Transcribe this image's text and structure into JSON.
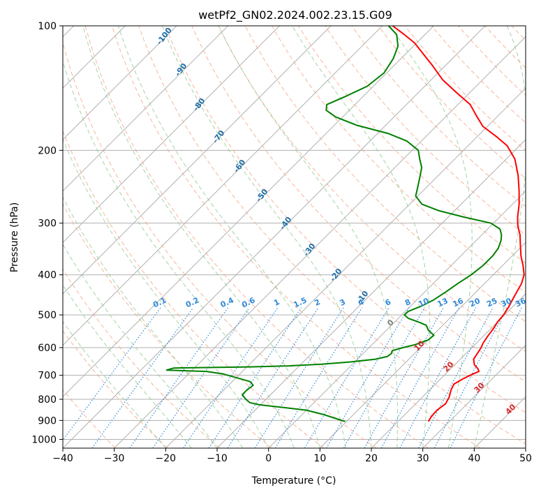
{
  "chart_data": {
    "type": "line",
    "title": "wetPf2_GN02.2024.002.23.15.G09",
    "xlabel": "Temperature (°C)",
    "ylabel": "Pressure (hPa)",
    "xlim": [
      -40,
      50
    ],
    "ylim": [
      1050,
      100
    ],
    "y_scale": "log",
    "skew": true,
    "grid": true,
    "x_ticks": [
      -40,
      -30,
      -20,
      -10,
      0,
      10,
      20,
      30,
      40,
      50
    ],
    "y_ticks": [
      100,
      200,
      300,
      400,
      500,
      600,
      700,
      800,
      900,
      1000
    ],
    "background_lines": {
      "isotherms_color": "#b0b0b0",
      "dry_adiabats_color": "#f5a27f",
      "moist_adiabats_color": "#8cc98c",
      "mixing_ratio_color": "#2f8ad8",
      "moist_adiabat_label_color": "#1f6fa8",
      "isotherm_label_color": "#d62728",
      "zero_isotherm_label_color": "#808080",
      "moist_adiabat_labels": [
        "-100",
        "-90",
        "-80",
        "-70",
        "-60",
        "-50",
        "-40",
        "-30",
        "-20",
        "-10"
      ],
      "mixing_ratio_labels": [
        "0.1",
        "0.2",
        "0.4",
        "0.6",
        "1",
        "1.5",
        "2",
        "3",
        "4",
        "6",
        "8",
        "10",
        "13",
        "16",
        "20",
        "25",
        "30",
        "36"
      ],
      "isotherm_labels": [
        "0",
        "10",
        "20",
        "30",
        "40"
      ]
    },
    "series": [
      {
        "color": "#ff0000",
        "points": [
          [
            905,
            25.9
          ],
          [
            880,
            25.5
          ],
          [
            850,
            25.4
          ],
          [
            820,
            25.8
          ],
          [
            790,
            25.2
          ],
          [
            760,
            24.2
          ],
          [
            735,
            23.6
          ],
          [
            715,
            24.3
          ],
          [
            700,
            25.0
          ],
          [
            685,
            26.0
          ],
          [
            675,
            25.3
          ],
          [
            660,
            23.8
          ],
          [
            640,
            22.6
          ],
          [
            620,
            22.2
          ],
          [
            600,
            21.8
          ],
          [
            585,
            21.3
          ],
          [
            560,
            20.8
          ],
          [
            540,
            20.5
          ],
          [
            520,
            20.0
          ],
          [
            500,
            19.8
          ],
          [
            480,
            19.3
          ],
          [
            460,
            18.6
          ],
          [
            440,
            17.9
          ],
          [
            420,
            17.2
          ],
          [
            400,
            16.0
          ],
          [
            380,
            14.0
          ],
          [
            360,
            11.7
          ],
          [
            340,
            9.6
          ],
          [
            320,
            7.4
          ],
          [
            305,
            5.3
          ],
          [
            290,
            3.5
          ],
          [
            270,
            1.3
          ],
          [
            250,
            -1.4
          ],
          [
            230,
            -4.5
          ],
          [
            210,
            -8.3
          ],
          [
            195,
            -12.4
          ],
          [
            185,
            -16.4
          ],
          [
            175,
            -20.9
          ],
          [
            165,
            -24.2
          ],
          [
            155,
            -27.6
          ],
          [
            145,
            -32.6
          ],
          [
            135,
            -37.8
          ],
          [
            125,
            -42.4
          ],
          [
            118,
            -46.0
          ],
          [
            110,
            -50.4
          ],
          [
            105,
            -54.0
          ],
          [
            100,
            -58.0
          ]
        ]
      },
      {
        "color": "#008000",
        "points": [
          [
            905,
            9.7
          ],
          [
            890,
            7.3
          ],
          [
            870,
            4.0
          ],
          [
            850,
            0.0
          ],
          [
            835,
            -6.0
          ],
          [
            825,
            -10.2
          ],
          [
            815,
            -12.5
          ],
          [
            800,
            -13.9
          ],
          [
            780,
            -15.5
          ],
          [
            760,
            -15.5
          ],
          [
            740,
            -15.2
          ],
          [
            725,
            -16.5
          ],
          [
            710,
            -19.8
          ],
          [
            695,
            -23.2
          ],
          [
            685,
            -27.0
          ],
          [
            680,
            -35.0
          ],
          [
            672,
            -34.0
          ],
          [
            668,
            -19.5
          ],
          [
            664,
            -12.0
          ],
          [
            658,
            -6.0
          ],
          [
            650,
            -1.0
          ],
          [
            640,
            3.5
          ],
          [
            630,
            5.3
          ],
          [
            620,
            5.5
          ],
          [
            610,
            5.1
          ],
          [
            600,
            6.6
          ],
          [
            590,
            8.4
          ],
          [
            575,
            10.0
          ],
          [
            560,
            10.2
          ],
          [
            545,
            8.2
          ],
          [
            530,
            6.8
          ],
          [
            520,
            4.6
          ],
          [
            510,
            2.0
          ],
          [
            500,
            0.5
          ],
          [
            490,
            0.6
          ],
          [
            475,
            2.2
          ],
          [
            460,
            3.3
          ],
          [
            440,
            4.1
          ],
          [
            420,
            4.8
          ],
          [
            400,
            5.7
          ],
          [
            380,
            6.2
          ],
          [
            360,
            6.2
          ],
          [
            345,
            5.8
          ],
          [
            330,
            4.8
          ],
          [
            320,
            3.8
          ],
          [
            310,
            2.4
          ],
          [
            300,
            -0.5
          ],
          [
            290,
            -7.0
          ],
          [
            280,
            -13.0
          ],
          [
            270,
            -17.6
          ],
          [
            258,
            -20.4
          ],
          [
            245,
            -21.8
          ],
          [
            232,
            -23.3
          ],
          [
            220,
            -24.8
          ],
          [
            210,
            -26.8
          ],
          [
            200,
            -28.8
          ],
          [
            190,
            -32.8
          ],
          [
            182,
            -38.0
          ],
          [
            174,
            -45.6
          ],
          [
            166,
            -51.4
          ],
          [
            160,
            -54.5
          ],
          [
            155,
            -55.5
          ],
          [
            148,
            -53.4
          ],
          [
            140,
            -51.2
          ],
          [
            130,
            -50.5
          ],
          [
            120,
            -51.5
          ],
          [
            112,
            -53.0
          ],
          [
            105,
            -55.5
          ],
          [
            100,
            -58.8
          ]
        ]
      }
    ]
  }
}
